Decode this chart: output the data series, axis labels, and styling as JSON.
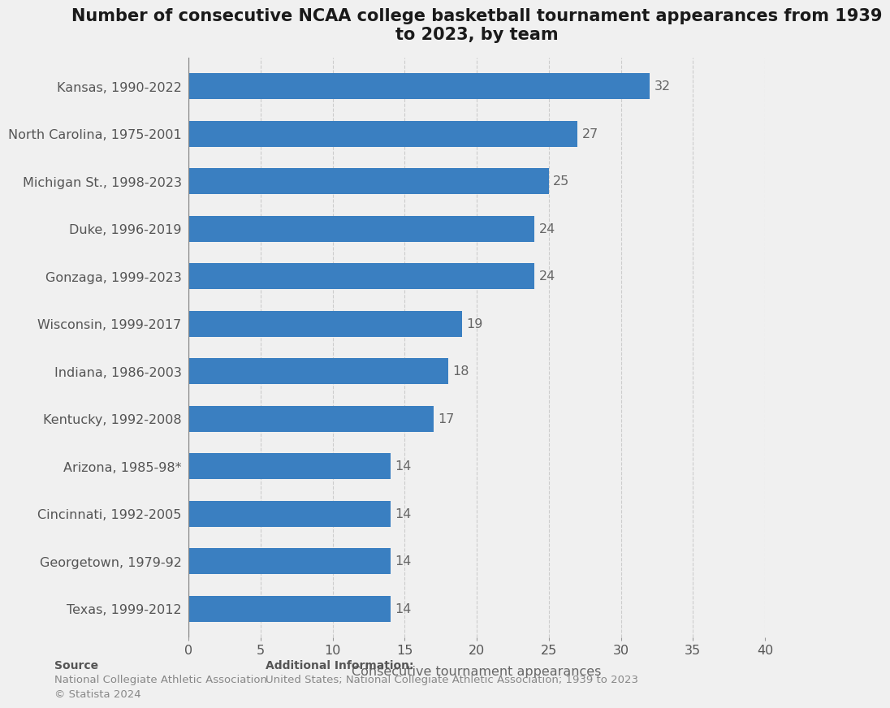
{
  "title": "Number of consecutive NCAA college basketball tournament appearances from 1939\nto 2023, by team",
  "xlabel": "Consecutive tournament appearances",
  "categories": [
    "Kansas, 1990-2022",
    "North Carolina, 1975-2001",
    "Michigan St., 1998-2023",
    "Duke, 1996-2019",
    "Gonzaga, 1999-2023",
    "Wisconsin, 1999-2017",
    "Indiana, 1986-2003",
    "Kentucky, 1992-2008",
    "Arizona, 1985-98*",
    "Cincinnati, 1992-2005",
    "Georgetown, 1979-92",
    "Texas, 1999-2012"
  ],
  "values": [
    32,
    27,
    25,
    24,
    24,
    19,
    18,
    17,
    14,
    14,
    14,
    14
  ],
  "bar_color": "#3a7fc1",
  "background_color": "#f0f0f0",
  "plot_background_color": "#f0f0f0",
  "xlim": [
    0,
    40
  ],
  "xticks": [
    0,
    5,
    10,
    15,
    20,
    25,
    30,
    35,
    40
  ],
  "title_fontsize": 15,
  "label_fontsize": 11.5,
  "tick_fontsize": 11.5,
  "value_fontsize": 11.5,
  "grid_color": "#cccccc",
  "source_bold": "Source",
  "source_line1": "National Collegiate Athletic Association",
  "source_line2": "© Statista 2024",
  "additional_bold": "Additional Information:",
  "additional_line1": "United States; National Collegiate Athletic Association; 1939 to 2023"
}
